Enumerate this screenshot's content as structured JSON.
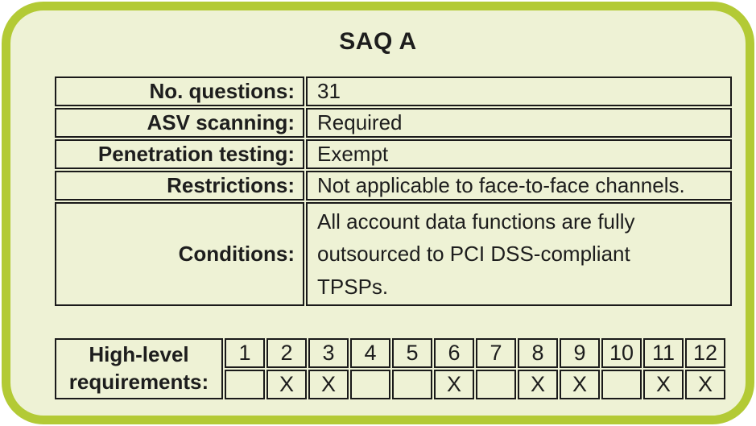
{
  "title": "SAQ A",
  "colors": {
    "accent_border": "#b3ca35",
    "background": "#eef2d5",
    "table_line": "#1a1a1a",
    "text": "#1d1d1d"
  },
  "details_table": {
    "rows": [
      {
        "label": "No. questions:",
        "value": "31"
      },
      {
        "label": "ASV scanning:",
        "value": "Required"
      },
      {
        "label": "Penetration testing:",
        "value": "Exempt"
      },
      {
        "label": "Restrictions:",
        "value": "Not applicable to face-to-face channels."
      },
      {
        "label": "Conditions:",
        "value": "All account data functions are fully\noutsourced to PCI DSS-compliant\nTPSPs."
      }
    ]
  },
  "requirements_table": {
    "label": "High-level\nrequirements:",
    "columns": [
      {
        "number": "1",
        "mark": ""
      },
      {
        "number": "2",
        "mark": "X"
      },
      {
        "number": "3",
        "mark": "X"
      },
      {
        "number": "4",
        "mark": ""
      },
      {
        "number": "5",
        "mark": ""
      },
      {
        "number": "6",
        "mark": "X"
      },
      {
        "number": "7",
        "mark": ""
      },
      {
        "number": "8",
        "mark": "X"
      },
      {
        "number": "9",
        "mark": "X"
      },
      {
        "number": "10",
        "mark": ""
      },
      {
        "number": "11",
        "mark": "X"
      },
      {
        "number": "12",
        "mark": "X"
      }
    ]
  }
}
